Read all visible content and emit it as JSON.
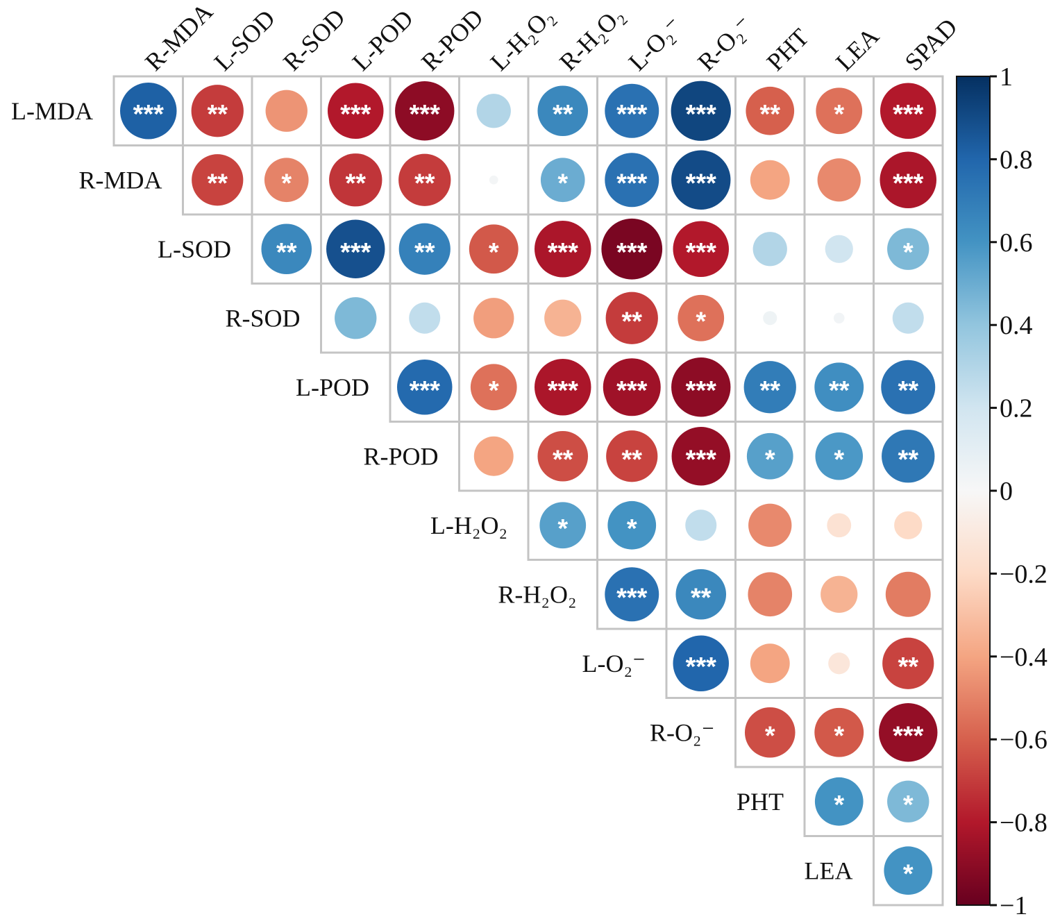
{
  "chart_data": {
    "type": "heatmap",
    "style": "upper-triangle correlation matrix with sized circles",
    "row_labels": [
      "L-MDA",
      "R-MDA",
      "L-SOD",
      "R-SOD",
      "L-POD",
      "R-POD",
      "L-H₂O₂",
      "R-H₂O₂",
      "L-O₂⁻",
      "R-O₂⁻",
      "PHT",
      "LEA"
    ],
    "col_labels": [
      "R-MDA",
      "L-SOD",
      "R-SOD",
      "L-POD",
      "R-POD",
      "L-H₂O₂",
      "R-H₂O₂",
      "L-O₂⁻",
      "R-O₂⁻",
      "PHT",
      "LEA",
      "SPAD"
    ],
    "values": [
      [
        0.82,
        -0.7,
        -0.45,
        -0.8,
        -0.9,
        0.3,
        0.65,
        0.75,
        0.92,
        -0.6,
        -0.55,
        -0.8
      ],
      [
        null,
        -0.68,
        -0.5,
        -0.72,
        -0.7,
        0.02,
        0.5,
        0.75,
        0.9,
        -0.4,
        -0.48,
        -0.82
      ],
      [
        null,
        null,
        0.65,
        0.88,
        0.68,
        -0.62,
        -0.82,
        -0.95,
        -0.8,
        0.3,
        0.2,
        0.45
      ],
      [
        null,
        null,
        null,
        0.45,
        0.25,
        -0.42,
        -0.35,
        -0.7,
        -0.55,
        0.05,
        0.03,
        0.25
      ],
      [
        null,
        null,
        null,
        null,
        0.78,
        -0.55,
        -0.82,
        -0.85,
        -0.9,
        0.7,
        0.62,
        0.75
      ],
      [
        null,
        null,
        null,
        null,
        null,
        -0.4,
        -0.65,
        -0.68,
        -0.88,
        0.55,
        0.58,
        0.72
      ],
      [
        null,
        null,
        null,
        null,
        null,
        null,
        0.55,
        0.6,
        0.25,
        -0.48,
        -0.15,
        -0.2
      ],
      [
        null,
        null,
        null,
        null,
        null,
        null,
        null,
        0.75,
        0.65,
        -0.5,
        -0.35,
        -0.52
      ],
      [
        null,
        null,
        null,
        null,
        null,
        null,
        null,
        null,
        0.8,
        -0.4,
        -0.12,
        -0.68
      ],
      [
        null,
        null,
        null,
        null,
        null,
        null,
        null,
        null,
        null,
        -0.65,
        -0.62,
        -0.88
      ],
      [
        null,
        null,
        null,
        null,
        null,
        null,
        null,
        null,
        null,
        null,
        0.6,
        0.45
      ],
      [
        null,
        null,
        null,
        null,
        null,
        null,
        null,
        null,
        null,
        null,
        null,
        0.6
      ]
    ],
    "significance": [
      [
        "***",
        "**",
        "",
        "***",
        "***",
        "",
        "**",
        "***",
        "***",
        "**",
        "*",
        "***"
      ],
      [
        null,
        "**",
        "*",
        "**",
        "**",
        "",
        "*",
        "***",
        "***",
        "",
        "",
        "***"
      ],
      [
        null,
        null,
        "**",
        "***",
        "**",
        "*",
        "***",
        "***",
        "***",
        "",
        "",
        "*"
      ],
      [
        null,
        null,
        null,
        "",
        "",
        "",
        "",
        "**",
        "*",
        "",
        "",
        ""
      ],
      [
        null,
        null,
        null,
        null,
        "***",
        "*",
        "***",
        "***",
        "***",
        "**",
        "**",
        "**"
      ],
      [
        null,
        null,
        null,
        null,
        null,
        "",
        "**",
        "**",
        "***",
        "*",
        "*",
        "**"
      ],
      [
        null,
        null,
        null,
        null,
        null,
        null,
        "*",
        "*",
        "",
        "",
        "",
        ""
      ],
      [
        null,
        null,
        null,
        null,
        null,
        null,
        null,
        "***",
        "**",
        "",
        "",
        ""
      ],
      [
        null,
        null,
        null,
        null,
        null,
        null,
        null,
        null,
        "***",
        "",
        "",
        "**"
      ],
      [
        null,
        null,
        null,
        null,
        null,
        null,
        null,
        null,
        null,
        "*",
        "*",
        "***"
      ],
      [
        null,
        null,
        null,
        null,
        null,
        null,
        null,
        null,
        null,
        null,
        "*",
        "*"
      ],
      [
        null,
        null,
        null,
        null,
        null,
        null,
        null,
        null,
        null,
        null,
        null,
        "*"
      ]
    ],
    "colorbar": {
      "range": [
        -1,
        1
      ],
      "tick_values": [
        1,
        0.8,
        0.6,
        0.4,
        0.2,
        0,
        -0.2,
        -0.4,
        -0.6,
        -0.8,
        -1
      ],
      "tick_labels": [
        "1",
        "0.8",
        "0.6",
        "0.4",
        "0.2",
        "0",
        "−0.2",
        "−0.4",
        "−0.6",
        "−0.8",
        "−1"
      ],
      "colors": [
        "#67001f",
        "#b2182b",
        "#d6604d",
        "#f4a582",
        "#fddbc7",
        "#f7f7f7",
        "#d1e5f0",
        "#92c5de",
        "#4393c3",
        "#2166ac",
        "#053061"
      ]
    },
    "legend_position": "right"
  }
}
